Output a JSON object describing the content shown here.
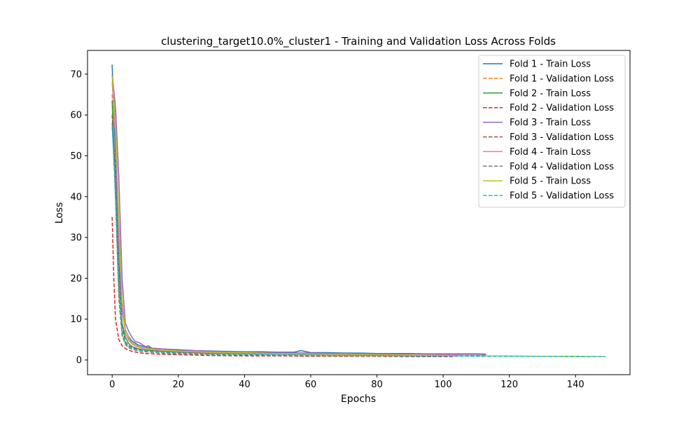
{
  "chart_data": {
    "type": "line",
    "title": "clustering_target10.0%_cluster1 - Training and Validation Loss Across Folds",
    "xlabel": "Epochs",
    "ylabel": "Loss",
    "xlim": [
      -7.45,
      156.45
    ],
    "ylim": [
      -3.6,
      75.8
    ],
    "xticks": [
      0,
      20,
      40,
      60,
      80,
      100,
      120,
      140
    ],
    "yticks": [
      0,
      10,
      20,
      30,
      40,
      50,
      60,
      70
    ],
    "grid": false,
    "legend_position": "upper right",
    "series": [
      {
        "name": "Fold 1 - Train Loss",
        "color": "#1f77b4",
        "dash": "solid",
        "x": [
          0,
          1,
          2,
          3,
          4,
          5,
          6,
          8,
          10,
          12,
          15,
          20,
          25,
          30,
          35,
          40,
          45,
          50,
          55,
          57,
          60,
          65,
          70,
          75,
          80,
          85,
          90,
          95,
          100,
          105,
          110,
          113
        ],
        "y": [
          72.3,
          50,
          24,
          12,
          7.5,
          5.6,
          4.6,
          3.6,
          3.2,
          2.9,
          2.7,
          2.5,
          2.3,
          2.2,
          2.1,
          2.0,
          2.0,
          1.9,
          1.9,
          2.3,
          1.8,
          1.8,
          1.7,
          1.7,
          1.6,
          1.6,
          1.6,
          1.5,
          1.5,
          1.5,
          1.5,
          1.4
        ]
      },
      {
        "name": "Fold 1 - Validation Loss",
        "color": "#ff7f0e",
        "dash": "dashed",
        "x": [
          0,
          1,
          2,
          3,
          4,
          5,
          6,
          8,
          10,
          15,
          20,
          30,
          40,
          50,
          60,
          70,
          80,
          90,
          100,
          110,
          113
        ],
        "y": [
          65,
          40,
          15,
          6,
          4,
          3.2,
          2.7,
          2.3,
          2.1,
          1.8,
          1.6,
          1.4,
          1.3,
          1.3,
          1.2,
          1.2,
          1.1,
          1.1,
          1.1,
          1.1,
          1.1
        ]
      },
      {
        "name": "Fold 2 - Train Loss",
        "color": "#2ca02c",
        "dash": "solid",
        "x": [
          0,
          1,
          2,
          3,
          4,
          5,
          6,
          8,
          10,
          15,
          20,
          30,
          40,
          50,
          60,
          70,
          80,
          90,
          100,
          103
        ],
        "y": [
          63.5,
          40,
          18,
          9,
          5.5,
          4,
          3.3,
          2.7,
          2.4,
          2.1,
          1.9,
          1.6,
          1.5,
          1.4,
          1.3,
          1.2,
          1.2,
          1.1,
          1.1,
          1.1
        ]
      },
      {
        "name": "Fold 2 - Validation Loss",
        "color": "#d62728",
        "dash": "dashed",
        "x": [
          0,
          0.5,
          1,
          2,
          3,
          4,
          5,
          6,
          8,
          10,
          15,
          20,
          30,
          40,
          50,
          60,
          70,
          80,
          90,
          100,
          103
        ],
        "y": [
          35,
          20,
          10,
          5,
          3.5,
          2.8,
          2.4,
          2.1,
          1.8,
          1.6,
          1.4,
          1.3,
          1.1,
          1.0,
          1.0,
          0.9,
          0.9,
          0.9,
          0.8,
          0.8,
          0.8
        ]
      },
      {
        "name": "Fold 3 - Train Loss",
        "color": "#9467bd",
        "dash": "solid",
        "x": [
          0,
          1,
          2,
          3,
          4,
          5,
          6,
          7,
          8,
          9,
          10,
          11,
          12,
          15,
          20,
          25,
          30,
          40,
          50,
          60,
          70,
          80,
          90,
          100,
          110,
          113
        ],
        "y": [
          70,
          62,
          45,
          20,
          9,
          7,
          5.5,
          4.5,
          4.3,
          3.8,
          3.3,
          3.5,
          2.9,
          2.7,
          2.4,
          2.3,
          2.1,
          1.9,
          1.8,
          1.7,
          1.6,
          1.5,
          1.5,
          1.4,
          1.4,
          1.3
        ]
      },
      {
        "name": "Fold 3 - Validation Loss",
        "color": "#8c564b",
        "dash": "dashed",
        "x": [
          0,
          1,
          2,
          3,
          4,
          5,
          6,
          8,
          10,
          15,
          20,
          30,
          40,
          50,
          60,
          70,
          80,
          90,
          100,
          110,
          113
        ],
        "y": [
          60,
          45,
          22,
          8,
          4.5,
          3.5,
          3,
          2.6,
          2.3,
          2,
          1.8,
          1.6,
          1.5,
          1.4,
          1.3,
          1.2,
          1.2,
          1.1,
          1.1,
          1.1,
          1.0
        ]
      },
      {
        "name": "Fold 4 - Train Loss",
        "color": "#e377c2",
        "dash": "solid",
        "x": [
          0,
          1,
          2,
          3,
          4,
          5,
          6,
          8,
          10,
          15,
          20,
          30,
          40,
          50,
          60,
          70,
          80,
          90,
          100,
          105
        ],
        "y": [
          68,
          55,
          30,
          13,
          6.5,
          4.8,
          3.9,
          3.1,
          2.7,
          2.3,
          2.1,
          1.8,
          1.7,
          1.5,
          1.4,
          1.3,
          1.3,
          1.2,
          1.2,
          1.2
        ]
      },
      {
        "name": "Fold 4 - Validation Loss",
        "color": "#7f7f7f",
        "dash": "dashed",
        "x": [
          0,
          1,
          2,
          3,
          4,
          5,
          6,
          8,
          10,
          15,
          20,
          30,
          40,
          50,
          60,
          70,
          80,
          90,
          100,
          105
        ],
        "y": [
          58,
          40,
          16,
          6,
          3.8,
          3,
          2.6,
          2.2,
          2,
          1.7,
          1.5,
          1.3,
          1.2,
          1.1,
          1.0,
          1.0,
          1.0,
          0.9,
          0.9,
          0.9
        ]
      },
      {
        "name": "Fold 5 - Train Loss",
        "color": "#bcbd22",
        "dash": "solid",
        "x": [
          0,
          1,
          2,
          3,
          4,
          5,
          6,
          8,
          10,
          15,
          20,
          30,
          40,
          50,
          60,
          70,
          80,
          90,
          100,
          110,
          120,
          130,
          140,
          149
        ],
        "y": [
          69.5,
          58,
          35,
          15,
          7.5,
          5.3,
          4.2,
          3.3,
          2.9,
          2.4,
          2.2,
          1.9,
          1.8,
          1.6,
          1.5,
          1.4,
          1.3,
          1.2,
          1.1,
          1.0,
          1.0,
          0.9,
          0.9,
          0.8
        ]
      },
      {
        "name": "Fold 5 - Validation Loss",
        "color": "#17becf",
        "dash": "dashed",
        "x": [
          0,
          1,
          2,
          3,
          4,
          5,
          6,
          8,
          10,
          15,
          20,
          30,
          40,
          50,
          60,
          70,
          80,
          90,
          100,
          110,
          120,
          130,
          140,
          149
        ],
        "y": [
          57,
          42,
          20,
          7,
          4.2,
          3.3,
          2.8,
          2.4,
          2.2,
          1.9,
          1.7,
          1.5,
          1.4,
          1.3,
          1.2,
          1.1,
          1.1,
          1.0,
          1.0,
          0.9,
          0.9,
          0.9,
          0.8,
          0.8
        ]
      }
    ]
  }
}
